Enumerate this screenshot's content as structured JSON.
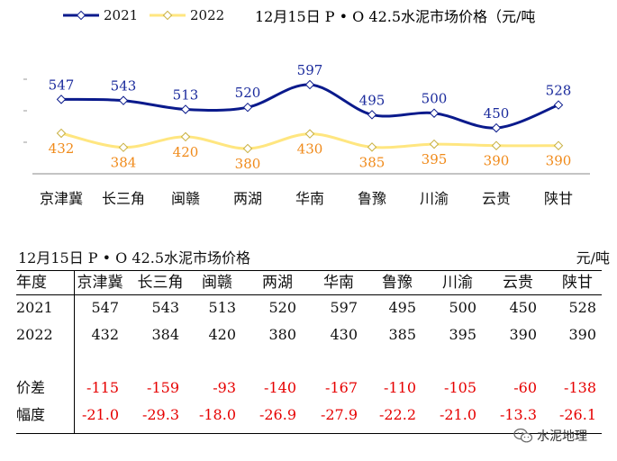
{
  "chart_data": {
    "type": "line",
    "title": "12月15日 P • O 42.5水泥市场价格（元/吨",
    "categories": [
      "京津冀",
      "长三角",
      "闽赣",
      "两湖",
      "华南",
      "鲁豫",
      "川渝",
      "云贵",
      "陕甘"
    ],
    "series": [
      {
        "name": "2021",
        "values": [
          547,
          543,
          513,
          520,
          597,
          495,
          500,
          450,
          528
        ],
        "color": "#0a1a8c",
        "label_color": "#1a2a9c"
      },
      {
        "name": "2022",
        "values": [
          432,
          384,
          420,
          380,
          430,
          385,
          395,
          390,
          390
        ],
        "color": "#ffe680",
        "label_color": "#f08a1a"
      }
    ],
    "xlabel": "",
    "ylabel": "",
    "legend": "top-left",
    "grid": false
  },
  "table": {
    "title": "12月15日 P • O 42.5水泥市场价格",
    "unit": "元/吨",
    "header_label": "年度",
    "columns": [
      "京津冀",
      "长三角",
      "闽赣",
      "两湖",
      "华南",
      "鲁豫",
      "川渝",
      "云贵",
      "陕甘"
    ],
    "rows": [
      {
        "label": "2021",
        "values": [
          "547",
          "543",
          "513",
          "520",
          "597",
          "495",
          "500",
          "450",
          "528"
        ],
        "red": false
      },
      {
        "label": "2022",
        "values": [
          "432",
          "384",
          "420",
          "380",
          "430",
          "385",
          "395",
          "390",
          "390"
        ],
        "red": false
      },
      {
        "label": "价差",
        "values": [
          "-115",
          "-159",
          "-93",
          "-140",
          "-167",
          "-110",
          "-105",
          "-60",
          "-138"
        ],
        "red": true
      },
      {
        "label": "幅度",
        "values": [
          "-21.0",
          "-29.3",
          "-18.0",
          "-26.9",
          "-27.9",
          "-22.2",
          "-21.0",
          "-13.3",
          "-26.1"
        ],
        "red": true
      }
    ]
  },
  "watermark": {
    "text": "水泥地理",
    "icon": "wechat-icon"
  }
}
